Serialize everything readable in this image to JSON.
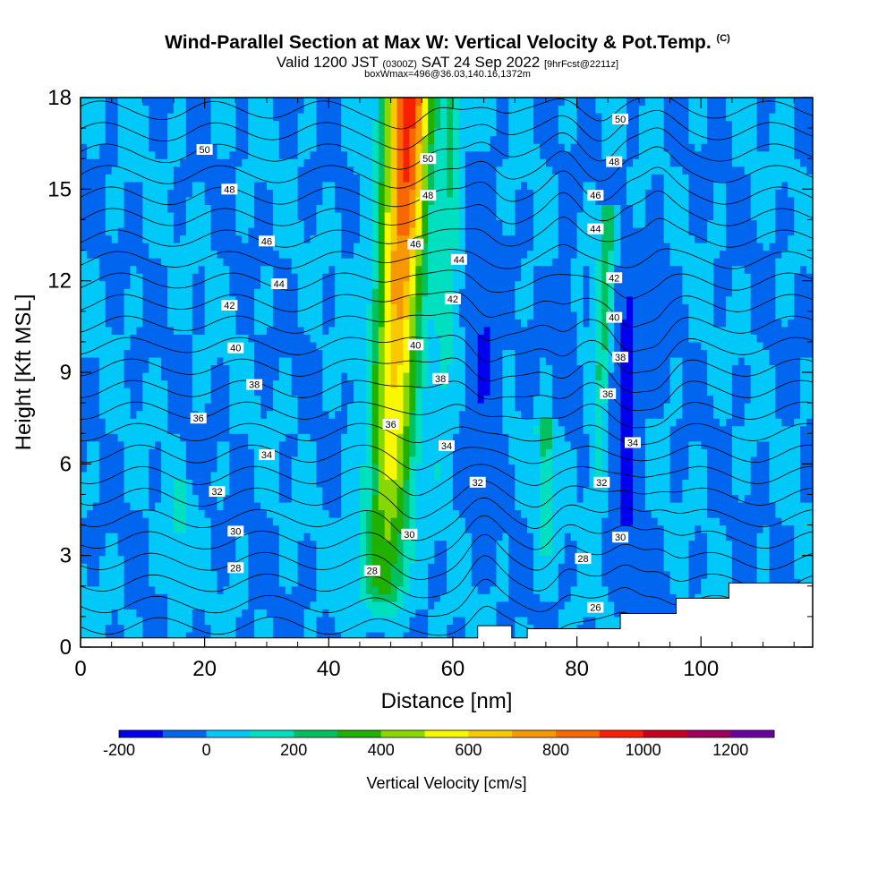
{
  "header": {
    "title": "Wind-Parallel Section at Max W: Vertical Velocity & Pot.Temp.",
    "copyright": "(C)",
    "valid_prefix": "Valid 1200 JST",
    "valid_utc": "(0300Z)",
    "valid_date": "SAT 24 Sep 2022",
    "forecast": "[9hrFcst@2211z]",
    "box_info": "boxWmax=496@36.03,140.16,1372m"
  },
  "colors": {
    "bins": [
      "#0000ee",
      "#0066f0",
      "#00c8f8",
      "#00e0c0",
      "#00c060",
      "#20b000",
      "#88d800",
      "#f8f800",
      "#f8c800",
      "#f89800",
      "#f86800",
      "#f82000",
      "#c80020",
      "#a00060",
      "#6a00a0"
    ],
    "contour": "#000000"
  },
  "chart_data": {
    "type": "heatmap",
    "title": "Wind-Parallel Section at Max W: Vertical Velocity & Pot.Temp.",
    "xlabel": "Distance [nm]",
    "ylabel": "Height [Kft MSL]",
    "xlim": [
      0,
      118
    ],
    "ylim": [
      0,
      18
    ],
    "x_ticks": [
      0,
      20,
      40,
      60,
      80,
      100
    ],
    "y_ticks": [
      0,
      3,
      6,
      9,
      12,
      15,
      18
    ],
    "colorbar": {
      "label": "Vertical Velocity [cm/s]",
      "min": -200,
      "max": 1300,
      "step": 100,
      "tick_values": [
        -200,
        0,
        200,
        400,
        600,
        800,
        1000,
        1200
      ]
    },
    "updrafts": [
      {
        "x_bottom": 49,
        "x_top": 53,
        "y_bottom": 2.0,
        "y_top": 18,
        "peak": 1000,
        "width": 3.6
      },
      {
        "x_bottom": 58,
        "x_top": 60,
        "y_bottom": 5.0,
        "y_top": 17.5,
        "peak": 220,
        "width": 1.6
      },
      {
        "x_bottom": 75,
        "x_top": 75,
        "y_bottom": 3.0,
        "y_top": 7.0,
        "peak": 260,
        "width": 1.5
      },
      {
        "x_bottom": 83,
        "x_top": 85,
        "y_bottom": 5.0,
        "y_top": 14.0,
        "peak": 330,
        "width": 1.2
      },
      {
        "x_bottom": 16,
        "x_top": 16,
        "y_bottom": 1.5,
        "y_top": 5.0,
        "peak": 150,
        "width": 1.5
      }
    ],
    "downdrafts": [
      {
        "x": 65,
        "y": 10.0,
        "y_half": 4.0,
        "width": 2.2,
        "peak": -120
      },
      {
        "x": 88,
        "y": 7.5,
        "y_half": 4.5,
        "width": 1.8,
        "peak": -180
      },
      {
        "x": 93,
        "y": 12.0,
        "y_half": 2.0,
        "width": 1.0,
        "peak": -110
      },
      {
        "x": 78,
        "y": 10.5,
        "y_half": 2.5,
        "width": 1.5,
        "peak": -60
      }
    ],
    "terrain": [
      [
        0,
        0.3
      ],
      [
        64,
        0.3
      ],
      [
        64,
        0.7
      ],
      [
        69.5,
        0.7
      ],
      [
        69.5,
        0.3
      ],
      [
        72,
        0.3
      ],
      [
        72,
        0.6
      ],
      [
        87,
        0.6
      ],
      [
        87,
        1.1
      ],
      [
        96,
        1.1
      ],
      [
        96,
        1.6
      ],
      [
        104.5,
        1.6
      ],
      [
        104.5,
        2.1
      ],
      [
        118,
        2.1
      ]
    ],
    "theta_contours": {
      "levels": [
        26,
        27,
        28,
        29,
        30,
        31,
        32,
        33,
        34,
        35,
        36,
        37,
        38,
        39,
        40,
        41,
        42,
        43,
        44,
        45,
        46,
        47,
        48,
        49,
        50,
        51
      ],
      "labels": [
        {
          "text": "50",
          "x": 20,
          "y": 16.3
        },
        {
          "text": "48",
          "x": 24,
          "y": 15.0
        },
        {
          "text": "46",
          "x": 30,
          "y": 13.3
        },
        {
          "text": "44",
          "x": 32,
          "y": 11.9
        },
        {
          "text": "42",
          "x": 24,
          "y": 11.2
        },
        {
          "text": "40",
          "x": 25,
          "y": 9.8
        },
        {
          "text": "38",
          "x": 28,
          "y": 8.6
        },
        {
          "text": "36",
          "x": 19,
          "y": 7.5
        },
        {
          "text": "34",
          "x": 30,
          "y": 6.3
        },
        {
          "text": "32",
          "x": 22,
          "y": 5.1
        },
        {
          "text": "30",
          "x": 25,
          "y": 3.8
        },
        {
          "text": "28",
          "x": 25,
          "y": 2.6
        },
        {
          "text": "50",
          "x": 56,
          "y": 16.0
        },
        {
          "text": "48",
          "x": 56,
          "y": 14.8
        },
        {
          "text": "46",
          "x": 54,
          "y": 13.2
        },
        {
          "text": "44",
          "x": 61,
          "y": 12.7
        },
        {
          "text": "42",
          "x": 60,
          "y": 11.4
        },
        {
          "text": "40",
          "x": 54,
          "y": 9.9
        },
        {
          "text": "38",
          "x": 58,
          "y": 8.8
        },
        {
          "text": "36",
          "x": 50,
          "y": 7.3
        },
        {
          "text": "34",
          "x": 59,
          "y": 6.6
        },
        {
          "text": "32",
          "x": 64,
          "y": 5.4
        },
        {
          "text": "30",
          "x": 53,
          "y": 3.7
        },
        {
          "text": "28",
          "x": 47,
          "y": 2.5
        },
        {
          "text": "50",
          "x": 87,
          "y": 17.3
        },
        {
          "text": "48",
          "x": 86,
          "y": 15.9
        },
        {
          "text": "46",
          "x": 83,
          "y": 14.8
        },
        {
          "text": "44",
          "x": 83,
          "y": 13.7
        },
        {
          "text": "42",
          "x": 86,
          "y": 12.1
        },
        {
          "text": "40",
          "x": 86,
          "y": 10.8
        },
        {
          "text": "38",
          "x": 87,
          "y": 9.5
        },
        {
          "text": "36",
          "x": 85,
          "y": 8.3
        },
        {
          "text": "34",
          "x": 89,
          "y": 6.7
        },
        {
          "text": "32",
          "x": 84,
          "y": 5.4
        },
        {
          "text": "30",
          "x": 87,
          "y": 3.6
        },
        {
          "text": "28",
          "x": 81,
          "y": 2.9
        },
        {
          "text": "26",
          "x": 83,
          "y": 1.3
        }
      ]
    }
  }
}
